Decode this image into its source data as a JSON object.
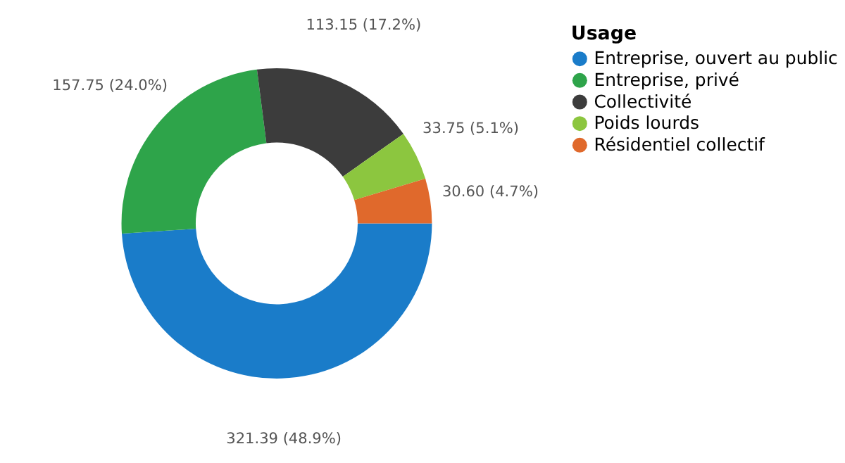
{
  "chart_data": {
    "type": "donut",
    "legend_title": "Usage",
    "categories": [
      "Entreprise, ouvert au public",
      "Entreprise, privé",
      "Collectivité",
      "Poids lourds",
      "Résidentiel collectif"
    ],
    "values": [
      321.39,
      157.75,
      113.15,
      33.75,
      30.6
    ],
    "colors": [
      "#1a7cc9",
      "#2ea44a",
      "#3c3c3c",
      "#8cc63f",
      "#e0692c"
    ],
    "value_labels": [
      "321.39 (48.9%)",
      "157.75 (24.0%)",
      "113.15 (17.2%)",
      "33.75 (5.1%)",
      "30.60 (4.7%)"
    ],
    "legend": "right"
  }
}
